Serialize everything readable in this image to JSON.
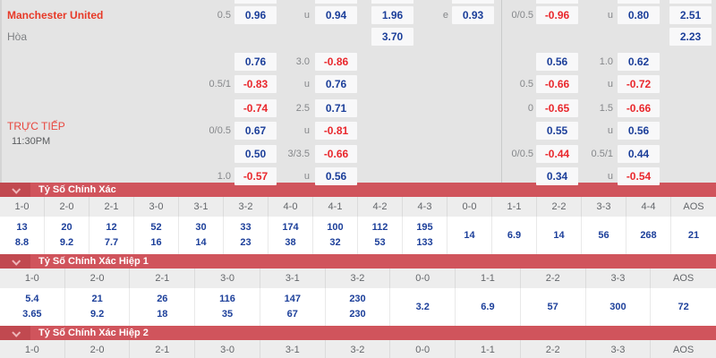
{
  "colors": {
    "panel_bg": "#e4e4e4",
    "cell_bg": "#f8f8f9",
    "banner_red": "#d0545c",
    "chevron_box_red": "#c14950",
    "odd_blue": "#1c3f9a",
    "odd_red": "#e9282d",
    "team_red": "#e73a28",
    "live_red": "#e8473f"
  },
  "live": {
    "label": "TRỰC TIẾP",
    "time": "11:30PM"
  },
  "odds_table": {
    "rows": [
      {
        "team": "Manchester United",
        "team_style": "red",
        "hl": "0.5",
        "a": "0.96",
        "ll": "u",
        "b": "0.94",
        "c": "1.96",
        "le": "e",
        "d": "0.93",
        "hr": "0/0.5",
        "e": "-0.96",
        "lr": "u",
        "f": "0.80",
        "g": "2.51"
      },
      {
        "team": "Hòa",
        "team_style": "gray",
        "c": "3.70",
        "g": "2.23"
      },
      {
        "a": "0.76",
        "ll": "3.0",
        "b": "-0.86",
        "e": "0.56",
        "lr": "1.0",
        "f": "0.62"
      },
      {
        "hl": "0.5/1",
        "a": "-0.83",
        "ll": "u",
        "b": "0.76",
        "hr": "0.5",
        "e": "-0.66",
        "lr": "u",
        "f": "-0.72"
      },
      {
        "a": "-0.74",
        "ll": "2.5",
        "b": "0.71",
        "hr": "0",
        "e": "-0.65",
        "lr": "1.5",
        "f": "-0.66"
      },
      {
        "hl": "0/0.5",
        "a": "0.67",
        "ll": "u",
        "b": "-0.81",
        "e": "0.55",
        "lr": "u",
        "f": "0.56"
      },
      {
        "a": "0.50",
        "ll": "3/3.5",
        "b": "-0.66",
        "hr": "0/0.5",
        "e": "-0.44",
        "lr": "0.5/1",
        "f": "0.44"
      },
      {
        "hl": "1.0",
        "a": "-0.57",
        "ll": "u",
        "b": "0.56",
        "e": "0.34",
        "lr": "u",
        "f": "-0.54"
      }
    ]
  },
  "score_sections": [
    {
      "title": "Tỷ Số Chính Xác",
      "columns": [
        "1-0",
        "2-0",
        "2-1",
        "3-0",
        "3-1",
        "3-2",
        "4-0",
        "4-1",
        "4-2",
        "4-3",
        "0-0",
        "1-1",
        "2-2",
        "3-3",
        "4-4",
        "AOS"
      ],
      "values": [
        [
          "13",
          "8.8"
        ],
        [
          "20",
          "9.2"
        ],
        [
          "12",
          "7.7"
        ],
        [
          "52",
          "16"
        ],
        [
          "30",
          "14"
        ],
        [
          "33",
          "23"
        ],
        [
          "174",
          "38"
        ],
        [
          "100",
          "32"
        ],
        [
          "112",
          "53"
        ],
        [
          "195",
          "133"
        ],
        [
          "14"
        ],
        [
          "6.9"
        ],
        [
          "14"
        ],
        [
          "56"
        ],
        [
          "268"
        ],
        [
          "21"
        ]
      ]
    },
    {
      "title": "Tỷ Số Chính Xác Hiệp 1",
      "columns": [
        "1-0",
        "2-0",
        "2-1",
        "3-0",
        "3-1",
        "3-2",
        "0-0",
        "1-1",
        "2-2",
        "3-3",
        "AOS"
      ],
      "values": [
        [
          "5.4",
          "3.65"
        ],
        [
          "21",
          "9.2"
        ],
        [
          "26",
          "18"
        ],
        [
          "116",
          "35"
        ],
        [
          "147",
          "67"
        ],
        [
          "230",
          "230"
        ],
        [
          "3.2"
        ],
        [
          "6.9"
        ],
        [
          "57"
        ],
        [
          "300"
        ],
        [
          "72"
        ]
      ]
    },
    {
      "title": "Tỷ Số Chính Xác Hiệp 2",
      "columns": [
        "1-0",
        "2-0",
        "2-1",
        "3-0",
        "3-1",
        "3-2",
        "0-0",
        "1-1",
        "2-2",
        "3-3",
        "AOS"
      ],
      "values": []
    }
  ]
}
